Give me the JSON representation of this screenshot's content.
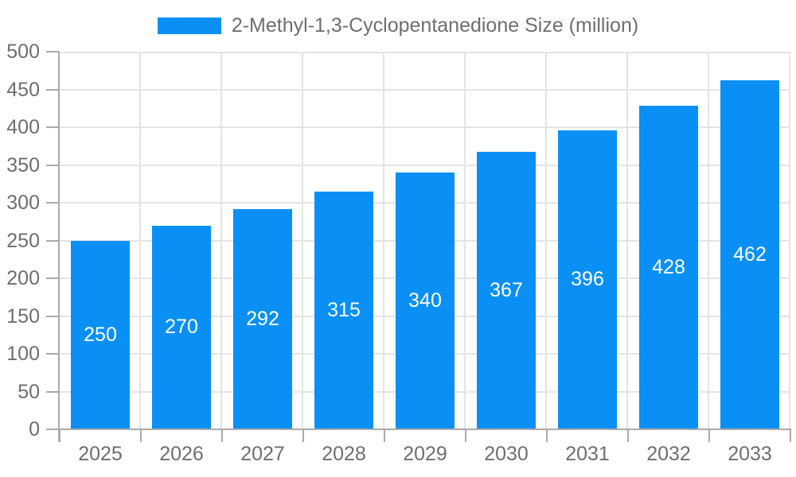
{
  "chart_data": {
    "type": "bar",
    "title": "2-Methyl-1,3-Cyclopentanedione Size (million)",
    "legend": [
      "2-Methyl-1,3-Cyclopentanedione Size (million)"
    ],
    "legend_position": "top",
    "categories": [
      "2025",
      "2026",
      "2027",
      "2028",
      "2029",
      "2030",
      "2031",
      "2032",
      "2033"
    ],
    "series": [
      {
        "name": "2-Methyl-1,3-Cyclopentanedione Size (million)",
        "values": [
          250,
          270,
          292,
          315,
          340,
          367,
          396,
          428,
          462
        ]
      }
    ],
    "xlabel": "",
    "ylabel": "",
    "ylim": [
      0,
      500
    ],
    "yticks": [
      0,
      50,
      100,
      150,
      200,
      250,
      300,
      350,
      400,
      450,
      500
    ],
    "grid": true,
    "bar_value_labels": true,
    "colors": {
      "bar": "#0a90f5",
      "grid": "#e4e4e4",
      "axis": "#ababab",
      "tick_text": "#6e6e6e",
      "value_text": "#ffffff",
      "background": "#ffffff"
    }
  }
}
